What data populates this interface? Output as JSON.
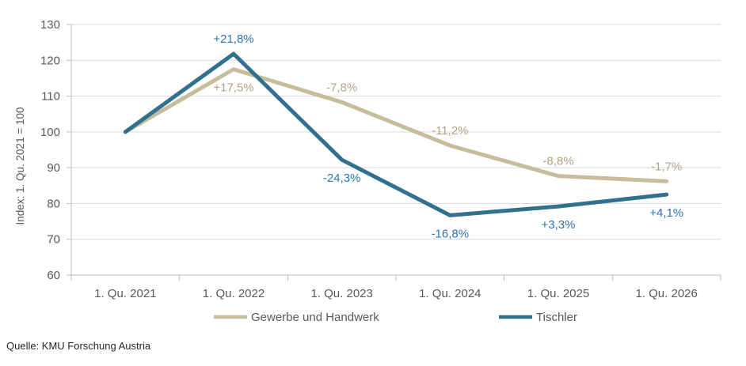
{
  "source_note": "Quelle: KMU Forschung Austria",
  "chart_data": {
    "type": "line",
    "title": "",
    "xlabel": "",
    "ylabel": "Index: 1. Qu. 2021 = 100",
    "categories": [
      "1. Qu. 2021",
      "1. Qu. 2022",
      "1. Qu. 2023",
      "1. Qu. 2024",
      "1. Qu. 2025",
      "1. Qu. 2026"
    ],
    "ylim": [
      60,
      130
    ],
    "yticks": [
      60,
      70,
      80,
      90,
      100,
      110,
      120,
      130
    ],
    "grid": true,
    "legend_position": "bottom",
    "grid_color": "#D9D9D9",
    "axis_color": "#BFBFBF",
    "axis_text_color": "#595959",
    "legend_text_color": "#595959",
    "series": [
      {
        "name": "Gewerbe und Handwerk",
        "color": "#C8BC9D",
        "label_color": "#B1A485",
        "values": [
          100,
          117.5,
          108.3,
          96.2,
          87.7,
          86.2
        ],
        "point_labels": [
          "",
          "+17,5%",
          "-7,8%",
          "-11,2%",
          "-8,8%",
          "-1,7%"
        ],
        "label_side": [
          "none",
          "below",
          "above",
          "above",
          "above",
          "above"
        ]
      },
      {
        "name": "Tischler",
        "color": "#31708F",
        "label_color": "#2E74B5",
        "values": [
          100,
          121.8,
          92.2,
          76.7,
          79.2,
          82.5
        ],
        "point_labels": [
          "",
          "+21,8%",
          "-24,3%",
          "-16,8%",
          "+3,3%",
          "+4,1%"
        ],
        "label_side": [
          "none",
          "above",
          "below",
          "below",
          "below",
          "below"
        ]
      }
    ]
  }
}
